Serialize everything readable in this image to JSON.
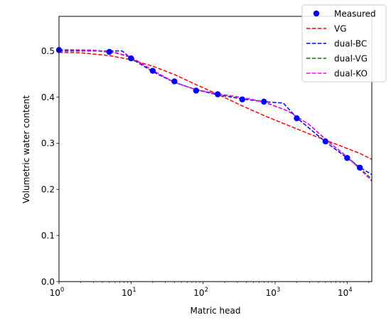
{
  "chart_data": {
    "type": "line",
    "title": "",
    "xlabel": "Matric head",
    "ylabel": "Volumetric water content",
    "xscale": "log",
    "xlim": [
      1,
      22000
    ],
    "ylim": [
      0,
      0.575
    ],
    "x_ticks": [
      {
        "value": 1,
        "base": "10",
        "exp": "0"
      },
      {
        "value": 10,
        "base": "10",
        "exp": "1"
      },
      {
        "value": 100,
        "base": "10",
        "exp": "2"
      },
      {
        "value": 1000,
        "base": "10",
        "exp": "3"
      },
      {
        "value": 10000,
        "base": "10",
        "exp": "4"
      }
    ],
    "y_ticks": [
      "0.0",
      "0.1",
      "0.2",
      "0.3",
      "0.4",
      "0.5"
    ],
    "grid": false,
    "legend_position": "top-right",
    "measured": {
      "name": "Measured",
      "color": "#0000ff",
      "x": [
        1,
        5,
        10,
        20,
        40,
        80,
        160,
        350,
        700,
        2000,
        5000,
        10000,
        15000
      ],
      "y": [
        0.502,
        0.498,
        0.484,
        0.457,
        0.434,
        0.414,
        0.406,
        0.395,
        0.39,
        0.354,
        0.304,
        0.268,
        0.247
      ]
    },
    "series": [
      {
        "name": "VG",
        "color": "#ff0000",
        "x": [
          1,
          2,
          5,
          10,
          20,
          40,
          80,
          160,
          350,
          700,
          1500,
          3000,
          7000,
          15000,
          22000
        ],
        "y": [
          0.497,
          0.496,
          0.49,
          0.481,
          0.467,
          0.449,
          0.427,
          0.406,
          0.381,
          0.36,
          0.339,
          0.32,
          0.298,
          0.278,
          0.265
        ]
      },
      {
        "name": "dual-BC",
        "color": "#0000ff",
        "x": [
          1,
          7.5,
          10,
          20,
          40,
          80,
          160,
          350,
          700,
          1300,
          2000,
          5000,
          10000,
          15000,
          22000
        ],
        "y": [
          0.5,
          0.5,
          0.484,
          0.455,
          0.432,
          0.416,
          0.405,
          0.396,
          0.39,
          0.387,
          0.355,
          0.303,
          0.268,
          0.248,
          0.232
        ]
      },
      {
        "name": "dual-VG",
        "color": "#008000",
        "x": [
          1,
          3,
          6,
          10,
          20,
          40,
          80,
          160,
          350,
          700,
          1500,
          3000,
          5000,
          10000,
          15000,
          22000
        ],
        "y": [
          0.502,
          0.501,
          0.496,
          0.486,
          0.458,
          0.432,
          0.416,
          0.407,
          0.399,
          0.39,
          0.37,
          0.34,
          0.308,
          0.271,
          0.246,
          0.222
        ]
      },
      {
        "name": "dual-KO",
        "color": "#ff00ff",
        "x": [
          1,
          3,
          6,
          10,
          20,
          40,
          80,
          160,
          350,
          700,
          1500,
          3000,
          5000,
          10000,
          15000,
          22000
        ],
        "y": [
          0.503,
          0.502,
          0.497,
          0.487,
          0.458,
          0.432,
          0.416,
          0.407,
          0.399,
          0.389,
          0.37,
          0.34,
          0.309,
          0.27,
          0.244,
          0.218
        ]
      }
    ]
  }
}
